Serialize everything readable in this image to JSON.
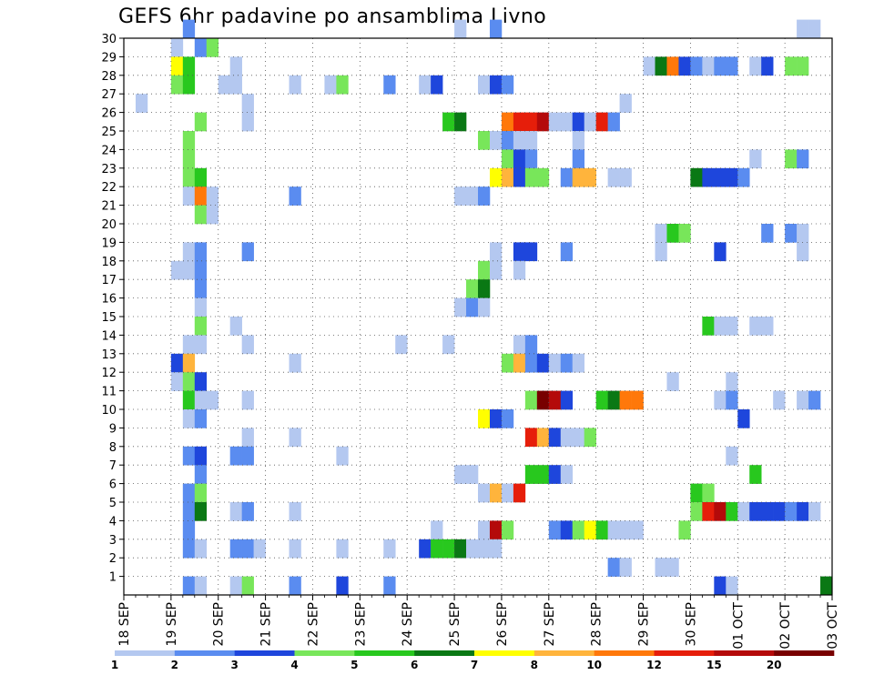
{
  "chart_data": {
    "type": "heatmap",
    "title": "GEFS 6hr padavine po ansamblima Livno",
    "x_ticks": [
      "18 SEP",
      "19 SEP",
      "20 SEP",
      "21 SEP",
      "22 SEP",
      "23 SEP",
      "24 SEP",
      "25 SEP",
      "26 SEP",
      "27 SEP",
      "28 SEP",
      "29 SEP",
      "30 SEP",
      "01 OCT",
      "02 OCT",
      "03 OCT"
    ],
    "y_ticks": [
      "1",
      "2",
      "3",
      "4",
      "5",
      "6",
      "7",
      "8",
      "9",
      "10",
      "11",
      "12",
      "13",
      "14",
      "15",
      "16",
      "17",
      "18",
      "19",
      "20",
      "21",
      "22",
      "23",
      "24",
      "25",
      "26",
      "27",
      "28",
      "29",
      "30"
    ],
    "ylim": [
      0,
      30
    ],
    "xlim_steps": [
      0,
      60
    ],
    "grid": true,
    "legend_levels": [
      "1",
      "2",
      "3",
      "4",
      "5",
      "6",
      "7",
      "8",
      "10",
      "12",
      "15",
      "20"
    ],
    "legend_colors": [
      "#b4c8f0",
      "#5a8cf0",
      "#1e46dc",
      "#78e65a",
      "#28c81e",
      "#0a7814",
      "#ffff00",
      "#ffb43c",
      "#ff780a",
      "#e61e0a",
      "#b40a0a",
      "#780000"
    ],
    "cells": [
      [
        30,
        5,
        2
      ],
      [
        30,
        28,
        1
      ],
      [
        30,
        31,
        2
      ],
      [
        30,
        57,
        1
      ],
      [
        30,
        58,
        1
      ],
      [
        29,
        4,
        1
      ],
      [
        29,
        6,
        2
      ],
      [
        29,
        7,
        4
      ],
      [
        28,
        4,
        7
      ],
      [
        28,
        5,
        5
      ],
      [
        28,
        9,
        1
      ],
      [
        28,
        44,
        1
      ],
      [
        28,
        45,
        6
      ],
      [
        28,
        46,
        9
      ],
      [
        28,
        47,
        3
      ],
      [
        28,
        48,
        2
      ],
      [
        28,
        49,
        1
      ],
      [
        28,
        50,
        2
      ],
      [
        28,
        51,
        2
      ],
      [
        28,
        53,
        1
      ],
      [
        28,
        54,
        3
      ],
      [
        28,
        56,
        4
      ],
      [
        28,
        57,
        4
      ],
      [
        27,
        4,
        4
      ],
      [
        27,
        5,
        5
      ],
      [
        27,
        8,
        1
      ],
      [
        27,
        9,
        1
      ],
      [
        27,
        14,
        1
      ],
      [
        27,
        17,
        1
      ],
      [
        27,
        18,
        4
      ],
      [
        27,
        22,
        2
      ],
      [
        27,
        25,
        1
      ],
      [
        27,
        26,
        3
      ],
      [
        27,
        30,
        1
      ],
      [
        27,
        31,
        3
      ],
      [
        27,
        32,
        2
      ],
      [
        26,
        1,
        1
      ],
      [
        26,
        10,
        1
      ],
      [
        26,
        42,
        1
      ],
      [
        25,
        6,
        4
      ],
      [
        25,
        10,
        1
      ],
      [
        25,
        27,
        5
      ],
      [
        25,
        28,
        6
      ],
      [
        25,
        32,
        9
      ],
      [
        25,
        33,
        10
      ],
      [
        25,
        34,
        10
      ],
      [
        25,
        35,
        11
      ],
      [
        25,
        36,
        1
      ],
      [
        25,
        37,
        1
      ],
      [
        25,
        38,
        3
      ],
      [
        25,
        39,
        1
      ],
      [
        25,
        40,
        10
      ],
      [
        25,
        41,
        2
      ],
      [
        24,
        5,
        4
      ],
      [
        24,
        30,
        4
      ],
      [
        24,
        31,
        1
      ],
      [
        24,
        32,
        2
      ],
      [
        24,
        33,
        1
      ],
      [
        24,
        34,
        1
      ],
      [
        24,
        38,
        1
      ],
      [
        23,
        5,
        4
      ],
      [
        23,
        32,
        4
      ],
      [
        23,
        33,
        3
      ],
      [
        23,
        34,
        2
      ],
      [
        23,
        38,
        2
      ],
      [
        23,
        53,
        1
      ],
      [
        23,
        56,
        4
      ],
      [
        23,
        57,
        2
      ],
      [
        22,
        5,
        4
      ],
      [
        22,
        6,
        5
      ],
      [
        22,
        31,
        7
      ],
      [
        22,
        32,
        8
      ],
      [
        22,
        33,
        3
      ],
      [
        22,
        34,
        4
      ],
      [
        22,
        35,
        4
      ],
      [
        22,
        37,
        2
      ],
      [
        22,
        38,
        8
      ],
      [
        22,
        39,
        8
      ],
      [
        22,
        41,
        1
      ],
      [
        22,
        42,
        1
      ],
      [
        22,
        48,
        6
      ],
      [
        22,
        49,
        3
      ],
      [
        22,
        50,
        3
      ],
      [
        22,
        51,
        3
      ],
      [
        22,
        52,
        2
      ],
      [
        21,
        5,
        1
      ],
      [
        21,
        6,
        9
      ],
      [
        21,
        7,
        1
      ],
      [
        21,
        14,
        2
      ],
      [
        21,
        28,
        1
      ],
      [
        21,
        29,
        1
      ],
      [
        21,
        30,
        2
      ],
      [
        20,
        6,
        4
      ],
      [
        20,
        7,
        1
      ],
      [
        19,
        45,
        1
      ],
      [
        19,
        46,
        5
      ],
      [
        19,
        47,
        4
      ],
      [
        19,
        54,
        2
      ],
      [
        19,
        56,
        2
      ],
      [
        19,
        57,
        1
      ],
      [
        18,
        5,
        1
      ],
      [
        18,
        6,
        2
      ],
      [
        18,
        10,
        2
      ],
      [
        18,
        31,
        1
      ],
      [
        18,
        33,
        3
      ],
      [
        18,
        34,
        3
      ],
      [
        18,
        37,
        2
      ],
      [
        18,
        45,
        1
      ],
      [
        18,
        50,
        3
      ],
      [
        18,
        57,
        1
      ],
      [
        17,
        4,
        1
      ],
      [
        17,
        5,
        1
      ],
      [
        17,
        6,
        2
      ],
      [
        17,
        30,
        4
      ],
      [
        17,
        31,
        1
      ],
      [
        17,
        33,
        1
      ],
      [
        16,
        6,
        2
      ],
      [
        16,
        29,
        4
      ],
      [
        16,
        30,
        6
      ],
      [
        15,
        6,
        1
      ],
      [
        15,
        28,
        1
      ],
      [
        15,
        29,
        2
      ],
      [
        15,
        30,
        1
      ],
      [
        14,
        6,
        4
      ],
      [
        14,
        9,
        1
      ],
      [
        14,
        49,
        5
      ],
      [
        14,
        50,
        1
      ],
      [
        14,
        51,
        1
      ],
      [
        14,
        53,
        1
      ],
      [
        14,
        54,
        1
      ],
      [
        13,
        5,
        1
      ],
      [
        13,
        6,
        1
      ],
      [
        13,
        10,
        1
      ],
      [
        13,
        23,
        1
      ],
      [
        13,
        27,
        1
      ],
      [
        13,
        33,
        1
      ],
      [
        13,
        34,
        2
      ],
      [
        12,
        4,
        3
      ],
      [
        12,
        5,
        8
      ],
      [
        12,
        14,
        1
      ],
      [
        12,
        32,
        4
      ],
      [
        12,
        33,
        8
      ],
      [
        12,
        34,
        2
      ],
      [
        12,
        35,
        3
      ],
      [
        12,
        36,
        1
      ],
      [
        12,
        37,
        2
      ],
      [
        12,
        38,
        1
      ],
      [
        11,
        4,
        1
      ],
      [
        11,
        5,
        4
      ],
      [
        11,
        6,
        3
      ],
      [
        11,
        46,
        1
      ],
      [
        11,
        51,
        1
      ],
      [
        10,
        5,
        5
      ],
      [
        10,
        6,
        1
      ],
      [
        10,
        7,
        1
      ],
      [
        10,
        10,
        1
      ],
      [
        10,
        34,
        4
      ],
      [
        10,
        35,
        12
      ],
      [
        10,
        36,
        11
      ],
      [
        10,
        37,
        3
      ],
      [
        10,
        40,
        5
      ],
      [
        10,
        41,
        6
      ],
      [
        10,
        42,
        9
      ],
      [
        10,
        43,
        9
      ],
      [
        10,
        50,
        1
      ],
      [
        10,
        51,
        2
      ],
      [
        10,
        55,
        1
      ],
      [
        10,
        57,
        1
      ],
      [
        10,
        58,
        2
      ],
      [
        9,
        5,
        1
      ],
      [
        9,
        6,
        2
      ],
      [
        9,
        30,
        7
      ],
      [
        9,
        31,
        3
      ],
      [
        9,
        32,
        2
      ],
      [
        9,
        52,
        3
      ],
      [
        8,
        10,
        1
      ],
      [
        8,
        14,
        1
      ],
      [
        8,
        34,
        10
      ],
      [
        8,
        35,
        8
      ],
      [
        8,
        36,
        3
      ],
      [
        8,
        37,
        1
      ],
      [
        8,
        38,
        1
      ],
      [
        8,
        39,
        4
      ],
      [
        7,
        5,
        2
      ],
      [
        7,
        6,
        3
      ],
      [
        7,
        9,
        2
      ],
      [
        7,
        10,
        2
      ],
      [
        7,
        18,
        1
      ],
      [
        7,
        51,
        1
      ],
      [
        6,
        6,
        2
      ],
      [
        6,
        28,
        1
      ],
      [
        6,
        29,
        1
      ],
      [
        6,
        34,
        5
      ],
      [
        6,
        35,
        5
      ],
      [
        6,
        36,
        3
      ],
      [
        6,
        37,
        1
      ],
      [
        6,
        53,
        5
      ],
      [
        5,
        5,
        2
      ],
      [
        5,
        6,
        4
      ],
      [
        5,
        30,
        1
      ],
      [
        5,
        31,
        8
      ],
      [
        5,
        32,
        1
      ],
      [
        5,
        33,
        10
      ],
      [
        5,
        48,
        5
      ],
      [
        5,
        49,
        4
      ],
      [
        4,
        5,
        2
      ],
      [
        4,
        6,
        6
      ],
      [
        4,
        9,
        1
      ],
      [
        4,
        10,
        2
      ],
      [
        4,
        14,
        1
      ],
      [
        4,
        48,
        4
      ],
      [
        4,
        49,
        10
      ],
      [
        4,
        50,
        11
      ],
      [
        4,
        51,
        5
      ],
      [
        4,
        52,
        1
      ],
      [
        4,
        53,
        3
      ],
      [
        4,
        54,
        3
      ],
      [
        4,
        55,
        3
      ],
      [
        4,
        56,
        2
      ],
      [
        4,
        57,
        3
      ],
      [
        4,
        58,
        1
      ],
      [
        3,
        5,
        2
      ],
      [
        3,
        26,
        1
      ],
      [
        3,
        30,
        1
      ],
      [
        3,
        31,
        11
      ],
      [
        3,
        32,
        4
      ],
      [
        3,
        36,
        2
      ],
      [
        3,
        37,
        3
      ],
      [
        3,
        38,
        4
      ],
      [
        3,
        39,
        7
      ],
      [
        3,
        40,
        5
      ],
      [
        3,
        41,
        1
      ],
      [
        3,
        42,
        1
      ],
      [
        3,
        43,
        1
      ],
      [
        3,
        47,
        4
      ],
      [
        2,
        5,
        2
      ],
      [
        2,
        6,
        1
      ],
      [
        2,
        9,
        2
      ],
      [
        2,
        10,
        2
      ],
      [
        2,
        11,
        1
      ],
      [
        2,
        14,
        1
      ],
      [
        2,
        18,
        1
      ],
      [
        2,
        22,
        1
      ],
      [
        2,
        25,
        3
      ],
      [
        2,
        26,
        5
      ],
      [
        2,
        27,
        5
      ],
      [
        2,
        28,
        6
      ],
      [
        2,
        29,
        1
      ],
      [
        2,
        30,
        1
      ],
      [
        2,
        31,
        1
      ],
      [
        1,
        41,
        2
      ],
      [
        1,
        42,
        1
      ],
      [
        1,
        45,
        1
      ],
      [
        1,
        46,
        1
      ],
      [
        0,
        5,
        2
      ],
      [
        0,
        6,
        1
      ],
      [
        0,
        9,
        1
      ],
      [
        0,
        10,
        4
      ],
      [
        0,
        14,
        2
      ],
      [
        0,
        18,
        3
      ],
      [
        0,
        22,
        2
      ],
      [
        0,
        50,
        3
      ],
      [
        0,
        51,
        1
      ],
      [
        0,
        59,
        6
      ]
    ]
  }
}
